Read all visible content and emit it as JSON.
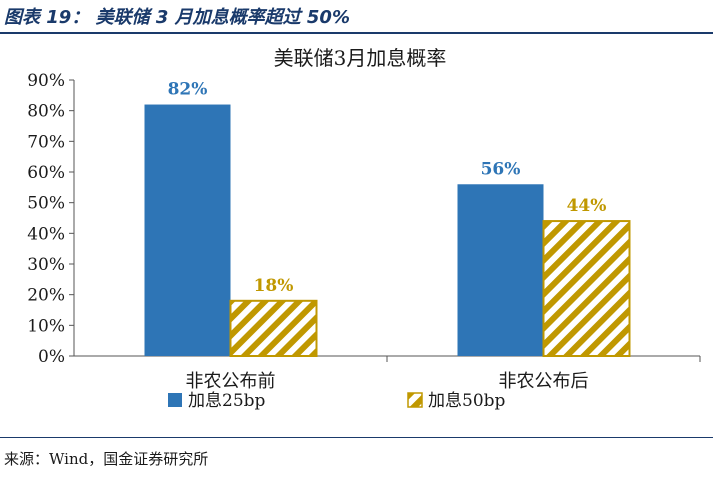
{
  "header": {
    "figure_title": "图表 19： 美联储 3 月加息概率超过 50%"
  },
  "footer": {
    "source": "来源：Wind，国金证券研究所"
  },
  "colors": {
    "series_1": "#2e75b6",
    "series_2": "#c09800",
    "label_1": "#2e75b6",
    "label_2": "#c09800"
  },
  "chart_data": {
    "type": "bar",
    "title": "美联储3月加息概率",
    "categories": [
      "非农公布前",
      "非农公布后"
    ],
    "series": [
      {
        "name": "加息25bp",
        "values": [
          82,
          56
        ],
        "labels": [
          "82%",
          "56%"
        ],
        "pattern": "solid"
      },
      {
        "name": "加息50bp",
        "values": [
          18,
          44
        ],
        "labels": [
          "18%",
          "44%"
        ],
        "pattern": "hatch"
      }
    ],
    "yticks": [
      "0%",
      "10%",
      "20%",
      "30%",
      "40%",
      "50%",
      "60%",
      "70%",
      "80%",
      "90%"
    ],
    "ylim": [
      0,
      90
    ],
    "grid": false,
    "legend": "bottom"
  }
}
